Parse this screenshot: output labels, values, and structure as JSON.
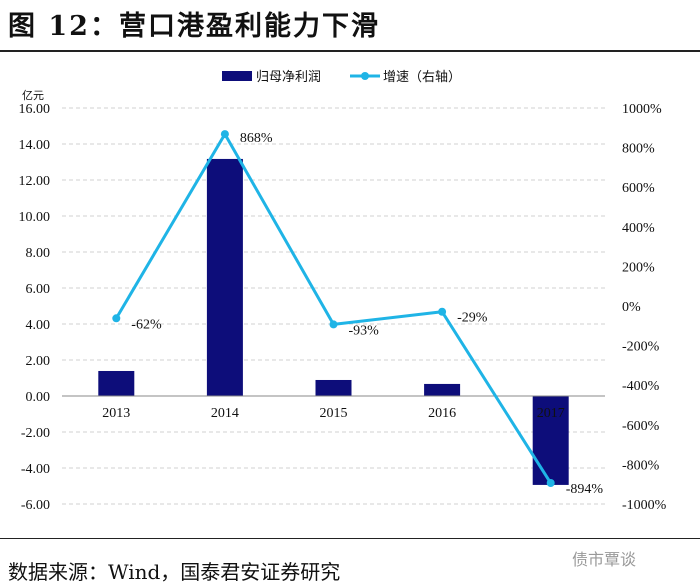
{
  "title": "图 12：营口港盈利能力下滑",
  "source": "数据来源：Wind，国泰君安证券研究",
  "watermark": "债市覃谈",
  "chart_data": {
    "type": "bar+line",
    "categories": [
      "2013",
      "2014",
      "2015",
      "2016",
      "2017"
    ],
    "series": [
      {
        "name": "归母净利润",
        "type": "bar",
        "axis": "left",
        "color": "#0d0d7a",
        "values": [
          1.39,
          13.17,
          0.89,
          0.67,
          -4.94
        ]
      },
      {
        "name": "增速（右轴）",
        "type": "line",
        "axis": "right",
        "color": "#1fb4e6",
        "values": [
          -62,
          868,
          -93,
          -29,
          -894
        ],
        "labels": [
          "-62%",
          "868%",
          "-93%",
          "-29%",
          "-894%"
        ]
      }
    ],
    "left_unit": "亿元",
    "ylim_left": [
      -6,
      16
    ],
    "ylim_right": [
      -1000,
      1000
    ],
    "left_ticks": [
      "16.00",
      "14.00",
      "12.00",
      "10.00",
      "8.00",
      "6.00",
      "4.00",
      "2.00",
      "0.00",
      "-2.00",
      "-4.00",
      "-6.00"
    ],
    "right_ticks": [
      "1000%",
      "800%",
      "600%",
      "400%",
      "200%",
      "0%",
      "-200%",
      "-400%",
      "-600%",
      "-800%",
      "-1000%"
    ],
    "legend": "top-center"
  }
}
